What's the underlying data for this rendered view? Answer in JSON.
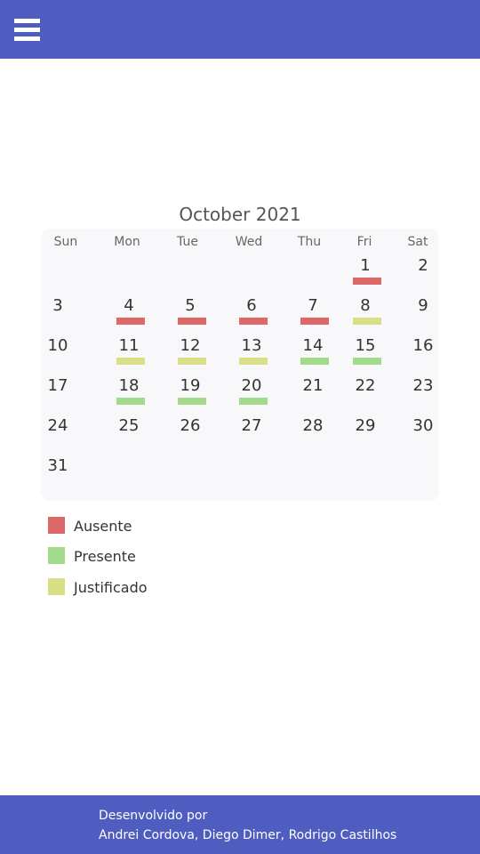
{
  "header": {
    "menu_icon": "hamburger-menu-icon"
  },
  "calendar": {
    "title": "October 2021",
    "weekdays": [
      "Sun",
      "Mon",
      "Tue",
      "Wed",
      "Thu",
      "Fri",
      "Sat"
    ],
    "start_weekday": 5,
    "days_in_month": 31,
    "status_colors": {
      "ausente": "#dc6868",
      "presente": "#a3d98a",
      "justificado": "#d9df86"
    },
    "day_status": {
      "1": "ausente",
      "4": "ausente",
      "5": "ausente",
      "6": "ausente",
      "7": "ausente",
      "8": "justificado",
      "11": "justificado",
      "12": "justificado",
      "13": "justificado",
      "14": "presente",
      "15": "presente",
      "18": "presente",
      "19": "presente",
      "20": "presente"
    }
  },
  "legend": [
    {
      "key": "ausente",
      "label": "Ausente",
      "color": "#dc6868"
    },
    {
      "key": "presente",
      "label": "Presente",
      "color": "#a3d98a"
    },
    {
      "key": "justificado",
      "label": "Justificado",
      "color": "#d9df86"
    }
  ],
  "footer": {
    "line1": "Desenvolvido por",
    "line2": "Andrei Cordova, Diego Dimer, Rodrigo Castilhos"
  },
  "theme": {
    "primary": "#4f5cc0"
  }
}
